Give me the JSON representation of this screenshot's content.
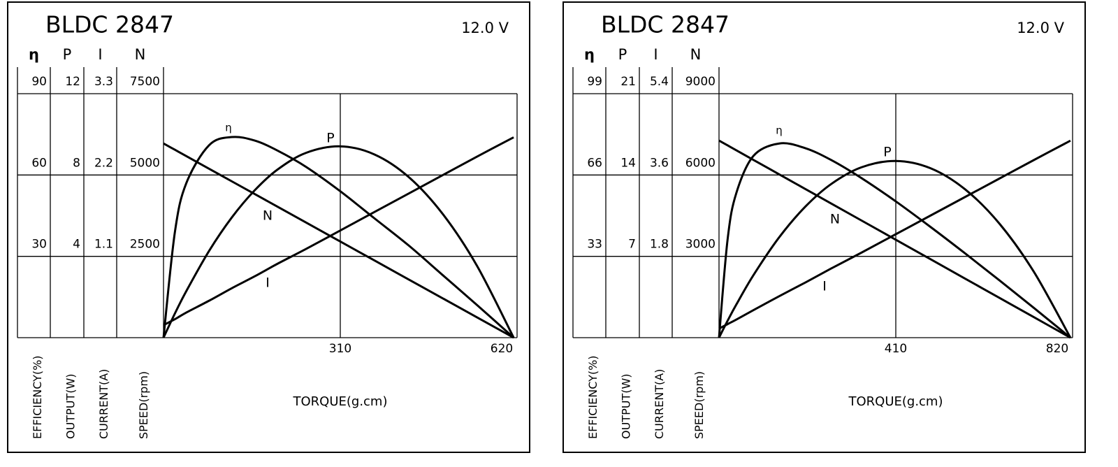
{
  "chart_data": [
    {
      "type": "line",
      "title": "BLDC 2847",
      "voltage": "12.0 V",
      "xlabel": "TORQUE(g.cm)",
      "xlim": [
        0,
        620
      ],
      "xticks": [
        310,
        620
      ],
      "axes": [
        {
          "symbol": "η",
          "title": "EFFICIENCY(%)",
          "ylim": [
            0,
            90
          ],
          "yticks": [
            30,
            60,
            90
          ]
        },
        {
          "symbol": "P",
          "title": "OUTPUT(W)",
          "ylim": [
            0,
            12
          ],
          "yticks": [
            4,
            8,
            12
          ]
        },
        {
          "symbol": "I",
          "title": "CURRENT(A)",
          "ylim": [
            0,
            3.3
          ],
          "yticks": [
            1.1,
            2.2,
            3.3
          ]
        },
        {
          "symbol": "N",
          "title": "SPEED(rpm)",
          "ylim": [
            0,
            7500
          ],
          "yticks": [
            2500,
            5000,
            7500
          ]
        }
      ],
      "x": [
        0,
        20,
        40,
        80,
        120,
        160,
        200,
        250,
        310,
        370,
        430,
        490,
        550,
        614
      ],
      "series": [
        {
          "name": "N",
          "axis": 3,
          "color": "#000000",
          "values": [
            5970,
            5776,
            5581,
            5192,
            4803,
            4414,
            4025,
            3539,
            2956,
            2372,
            1789,
            1206,
            622,
            0
          ]
        },
        {
          "name": "I",
          "axis": 2,
          "color": "#000000",
          "values": [
            0.17,
            0.25,
            0.34,
            0.5,
            0.67,
            0.83,
            1.0,
            1.2,
            1.45,
            1.7,
            1.95,
            2.2,
            2.45,
            2.71
          ]
        },
        {
          "name": "η",
          "axis": 0,
          "color": "#000000",
          "values": [
            0,
            39,
            57,
            71,
            74,
            72.7,
            69,
            63,
            54,
            44,
            34,
            23,
            12,
            0
          ]
        },
        {
          "name": "P",
          "axis": 1,
          "color": "#000000",
          "values": [
            0,
            1.19,
            2.29,
            4.27,
            5.92,
            7.25,
            8.27,
            9.09,
            9.41,
            9.01,
            7.9,
            6.07,
            3.52,
            0
          ]
        }
      ]
    },
    {
      "type": "line",
      "title": "BLDC 2847",
      "voltage": "12.0 V",
      "xlabel": "TORQUE(g.cm)",
      "xlim": [
        0,
        820
      ],
      "xticks": [
        410,
        820
      ],
      "axes": [
        {
          "symbol": "η",
          "title": "EFFICIENCY(%)",
          "ylim": [
            0,
            99
          ],
          "yticks": [
            33,
            66,
            99
          ]
        },
        {
          "symbol": "P",
          "title": "OUTPUT(W)",
          "ylim": [
            0,
            21
          ],
          "yticks": [
            7,
            14,
            21
          ]
        },
        {
          "symbol": "I",
          "title": "CURRENT(A)",
          "ylim": [
            0,
            5.4
          ],
          "yticks": [
            1.8,
            3.6,
            5.4
          ]
        },
        {
          "symbol": "N",
          "title": "SPEED(rpm)",
          "ylim": [
            0,
            9000
          ],
          "yticks": [
            3000,
            6000,
            9000
          ]
        }
      ],
      "x": [
        0,
        20,
        40,
        80,
        140,
        200,
        260,
        330,
        410,
        490,
        570,
        650,
        730,
        815
      ],
      "series": [
        {
          "name": "N",
          "axis": 3,
          "color": "#000000",
          "values": [
            7270,
            7092,
            6913,
            6556,
            6021,
            5486,
            4951,
            4326,
            3613,
            2899,
            2185,
            1472,
            758,
            0
          ]
        },
        {
          "name": "I",
          "axis": 2,
          "color": "#000000",
          "values": [
            0.2,
            0.3,
            0.4,
            0.61,
            0.92,
            1.22,
            1.53,
            1.88,
            2.29,
            2.7,
            3.11,
            3.52,
            3.93,
            4.36
          ]
        },
        {
          "name": "η",
          "axis": 0,
          "color": "#000000",
          "values": [
            0,
            40,
            58.6,
            73.8,
            78.8,
            76.9,
            72.1,
            64.8,
            55.3,
            45,
            34.3,
            23.3,
            12.1,
            0
          ]
        },
        {
          "name": "P",
          "axis": 1,
          "color": "#000000",
          "values": [
            0,
            1.46,
            2.84,
            5.39,
            8.66,
            11.27,
            13.22,
            14.66,
            15.21,
            14.59,
            12.79,
            9.83,
            5.68,
            0
          ]
        }
      ]
    }
  ]
}
